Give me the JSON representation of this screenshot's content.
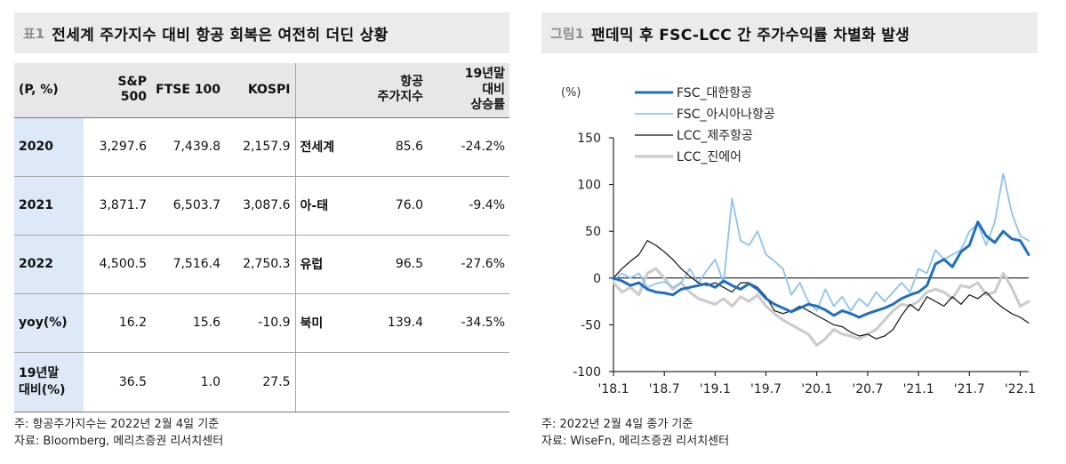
{
  "table_panel": {
    "tag": "표1",
    "title": "전세계 주가지수 대비 항공 회복은 여전히 더딘 상황",
    "headers": {
      "unit": "(P, %)",
      "sp500": "S&P 500",
      "ftse100": "FTSE 100",
      "kospi": "KOSPI",
      "airline_index_1": "항공",
      "airline_index_2": "주가지수",
      "vs19_1": "19년말",
      "vs19_2": "대비",
      "vs19_3": "상승률"
    },
    "rows": [
      {
        "label": "2020",
        "sp500": "3,297.6",
        "ftse100": "7,439.8",
        "kospi": "2,157.9",
        "region": "전세계",
        "airline_index": "85.6",
        "vs19": "-24.2%"
      },
      {
        "label": "2021",
        "sp500": "3,871.7",
        "ftse100": "6,503.7",
        "kospi": "3,087.6",
        "region": "아-태",
        "airline_index": "76.0",
        "vs19": "-9.4%"
      },
      {
        "label": "2022",
        "sp500": "4,500.5",
        "ftse100": "7,516.4",
        "kospi": "2,750.3",
        "region": "유럽",
        "airline_index": "96.5",
        "vs19": "-27.6%"
      },
      {
        "label": "yoy(%)",
        "sp500": "16.2",
        "ftse100": "15.6",
        "kospi": "-10.9",
        "region": "북미",
        "airline_index": "139.4",
        "vs19": "-34.5%"
      },
      {
        "label_1": "19년말",
        "label_2": "대비(%)",
        "sp500": "36.5",
        "ftse100": "1.0",
        "kospi": "27.5"
      }
    ],
    "note": "주: 항공주가지수는 2022년 2월 4일 기준",
    "source": "자료: Bloomberg, 메리츠증권 리서치센터"
  },
  "chart_panel": {
    "tag": "그림1",
    "title": "팬데믹 후 FSC-LCC 간 주가수익률 차별화 발생",
    "note": "주: 2022년 2월 4일 종가 기준",
    "source": "자료: WiseFn, 메리츠증권 리서치센터"
  },
  "chart_data": {
    "type": "line",
    "ylabel": "(%)",
    "ylim": [
      -100,
      150
    ],
    "yticks": [
      "150",
      "100",
      "50",
      "0",
      "-50",
      "-100"
    ],
    "xticks": [
      "'18.1",
      "'18.7",
      "'19.1",
      "'19.7",
      "'20.1",
      "'20.7",
      "'21.1",
      "'21.7",
      "'22.1"
    ],
    "x_range_months": [
      "2018-01",
      "2022-02"
    ],
    "grid": false,
    "legend_position": "top-left",
    "series": [
      {
        "name": "FSC_대한항공",
        "color": "#1f6fc0",
        "width": 3.0,
        "values": [
          [
            0,
            0
          ],
          [
            1,
            -3
          ],
          [
            2,
            -8
          ],
          [
            3,
            -5
          ],
          [
            4,
            -12
          ],
          [
            5,
            -15
          ],
          [
            6,
            -16
          ],
          [
            7,
            -18
          ],
          [
            8,
            -12
          ],
          [
            9,
            -10
          ],
          [
            10,
            -8
          ],
          [
            11,
            -6
          ],
          [
            12,
            -10
          ],
          [
            13,
            -3
          ],
          [
            14,
            -8
          ],
          [
            15,
            -12
          ],
          [
            16,
            -6
          ],
          [
            17,
            -12
          ],
          [
            18,
            -22
          ],
          [
            19,
            -28
          ],
          [
            20,
            -32
          ],
          [
            21,
            -36
          ],
          [
            22,
            -32
          ],
          [
            23,
            -28
          ],
          [
            24,
            -30
          ],
          [
            25,
            -34
          ],
          [
            26,
            -40
          ],
          [
            27,
            -35
          ],
          [
            28,
            -38
          ],
          [
            29,
            -42
          ],
          [
            30,
            -38
          ],
          [
            31,
            -35
          ],
          [
            32,
            -32
          ],
          [
            33,
            -28
          ],
          [
            34,
            -22
          ],
          [
            35,
            -18
          ],
          [
            36,
            -15
          ],
          [
            37,
            -8
          ],
          [
            38,
            15
          ],
          [
            39,
            20
          ],
          [
            40,
            12
          ],
          [
            41,
            28
          ],
          [
            42,
            35
          ],
          [
            43,
            60
          ],
          [
            44,
            45
          ],
          [
            45,
            38
          ],
          [
            46,
            50
          ],
          [
            47,
            42
          ],
          [
            48,
            40
          ],
          [
            49,
            25
          ]
        ]
      },
      {
        "name": "FSC_아시아나항공",
        "color": "#8ec2ee",
        "width": 1.8,
        "values": [
          [
            0,
            -3
          ],
          [
            1,
            5
          ],
          [
            2,
            0
          ],
          [
            3,
            5
          ],
          [
            4,
            -10
          ],
          [
            5,
            -6
          ],
          [
            6,
            -4
          ],
          [
            7,
            -10
          ],
          [
            8,
            -5
          ],
          [
            9,
            10
          ],
          [
            10,
            -5
          ],
          [
            11,
            8
          ],
          [
            12,
            20
          ],
          [
            13,
            -5
          ],
          [
            14,
            85
          ],
          [
            15,
            40
          ],
          [
            16,
            35
          ],
          [
            17,
            50
          ],
          [
            18,
            25
          ],
          [
            19,
            18
          ],
          [
            20,
            10
          ],
          [
            21,
            -18
          ],
          [
            22,
            -5
          ],
          [
            23,
            -25
          ],
          [
            24,
            -35
          ],
          [
            25,
            -12
          ],
          [
            26,
            -30
          ],
          [
            27,
            -20
          ],
          [
            28,
            -35
          ],
          [
            29,
            -22
          ],
          [
            30,
            -30
          ],
          [
            31,
            -15
          ],
          [
            32,
            -25
          ],
          [
            33,
            -15
          ],
          [
            34,
            -5
          ],
          [
            35,
            -15
          ],
          [
            36,
            10
          ],
          [
            37,
            5
          ],
          [
            38,
            30
          ],
          [
            39,
            20
          ],
          [
            40,
            25
          ],
          [
            41,
            30
          ],
          [
            42,
            50
          ],
          [
            43,
            58
          ],
          [
            44,
            35
          ],
          [
            45,
            60
          ],
          [
            46,
            112
          ],
          [
            47,
            70
          ],
          [
            48,
            45
          ],
          [
            49,
            40
          ]
        ]
      },
      {
        "name": "LCC_제주항공",
        "color": "#111111",
        "width": 1.2,
        "values": [
          [
            0,
            0
          ],
          [
            1,
            10
          ],
          [
            2,
            18
          ],
          [
            3,
            25
          ],
          [
            4,
            40
          ],
          [
            5,
            35
          ],
          [
            6,
            28
          ],
          [
            7,
            20
          ],
          [
            8,
            10
          ],
          [
            9,
            2
          ],
          [
            10,
            -5
          ],
          [
            11,
            -8
          ],
          [
            12,
            -5
          ],
          [
            13,
            -10
          ],
          [
            14,
            -15
          ],
          [
            15,
            -5
          ],
          [
            16,
            -5
          ],
          [
            17,
            -10
          ],
          [
            18,
            -20
          ],
          [
            19,
            -35
          ],
          [
            20,
            -38
          ],
          [
            21,
            -35
          ],
          [
            22,
            -30
          ],
          [
            23,
            -35
          ],
          [
            24,
            -40
          ],
          [
            25,
            -45
          ],
          [
            26,
            -50
          ],
          [
            27,
            -52
          ],
          [
            28,
            -58
          ],
          [
            29,
            -62
          ],
          [
            30,
            -60
          ],
          [
            31,
            -65
          ],
          [
            32,
            -62
          ],
          [
            33,
            -55
          ],
          [
            34,
            -40
          ],
          [
            35,
            -28
          ],
          [
            36,
            -35
          ],
          [
            37,
            -20
          ],
          [
            38,
            -25
          ],
          [
            39,
            -30
          ],
          [
            40,
            -20
          ],
          [
            41,
            -28
          ],
          [
            42,
            -18
          ],
          [
            43,
            -22
          ],
          [
            44,
            -15
          ],
          [
            45,
            -25
          ],
          [
            46,
            -32
          ],
          [
            47,
            -38
          ],
          [
            48,
            -42
          ],
          [
            49,
            -48
          ]
        ]
      },
      {
        "name": "LCC_진에어",
        "color": "#cccccc",
        "width": 3.2,
        "values": [
          [
            0,
            -5
          ],
          [
            1,
            -15
          ],
          [
            2,
            -10
          ],
          [
            3,
            -18
          ],
          [
            4,
            5
          ],
          [
            5,
            10
          ],
          [
            6,
            0
          ],
          [
            7,
            -12
          ],
          [
            8,
            -5
          ],
          [
            9,
            -15
          ],
          [
            10,
            -22
          ],
          [
            11,
            -25
          ],
          [
            12,
            -28
          ],
          [
            13,
            -22
          ],
          [
            14,
            -30
          ],
          [
            15,
            -20
          ],
          [
            16,
            -25
          ],
          [
            17,
            -18
          ],
          [
            18,
            -30
          ],
          [
            19,
            -38
          ],
          [
            20,
            -45
          ],
          [
            21,
            -50
          ],
          [
            22,
            -55
          ],
          [
            23,
            -60
          ],
          [
            24,
            -72
          ],
          [
            25,
            -65
          ],
          [
            26,
            -55
          ],
          [
            27,
            -60
          ],
          [
            28,
            -62
          ],
          [
            29,
            -65
          ],
          [
            30,
            -60
          ],
          [
            31,
            -55
          ],
          [
            32,
            -45
          ],
          [
            33,
            -35
          ],
          [
            34,
            -28
          ],
          [
            35,
            -30
          ],
          [
            36,
            -25
          ],
          [
            37,
            -15
          ],
          [
            38,
            -12
          ],
          [
            39,
            -15
          ],
          [
            40,
            -22
          ],
          [
            41,
            -8
          ],
          [
            42,
            -10
          ],
          [
            43,
            -5
          ],
          [
            44,
            -18
          ],
          [
            45,
            -15
          ],
          [
            46,
            5
          ],
          [
            47,
            -10
          ],
          [
            48,
            -30
          ],
          [
            49,
            -25
          ]
        ]
      }
    ]
  }
}
